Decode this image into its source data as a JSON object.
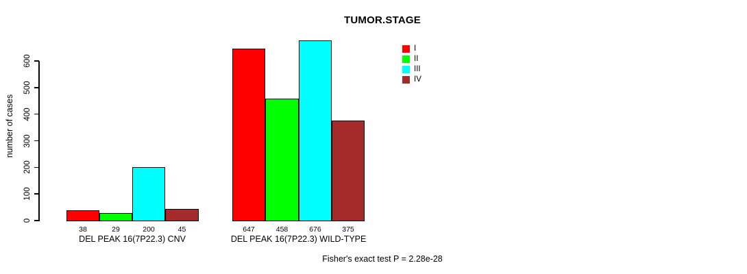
{
  "chart_data": {
    "type": "bar",
    "title": "TUMOR.STAGE",
    "ylabel": "number of cases",
    "xlabel": "",
    "yticks": [
      0,
      100,
      200,
      300,
      400,
      500,
      600
    ],
    "ylim": [
      0,
      690
    ],
    "grid": false,
    "legend_position": "top-right",
    "show_bar_values": true,
    "categories": [
      "DEL PEAK 16(7P22.3) CNV",
      "DEL PEAK 16(7P22.3) WILD-TYPE"
    ],
    "series": [
      {
        "name": "I",
        "color": "#ff0000",
        "values": [
          38,
          647
        ]
      },
      {
        "name": "II",
        "color": "#00ff00",
        "values": [
          29,
          458
        ]
      },
      {
        "name": "III",
        "color": "#00ffff",
        "values": [
          200,
          676
        ]
      },
      {
        "name": "IV",
        "color": "#a52a2a",
        "values": [
          45,
          375
        ]
      }
    ],
    "annotation": "Fisher's exact test P = 2.28e-28"
  }
}
